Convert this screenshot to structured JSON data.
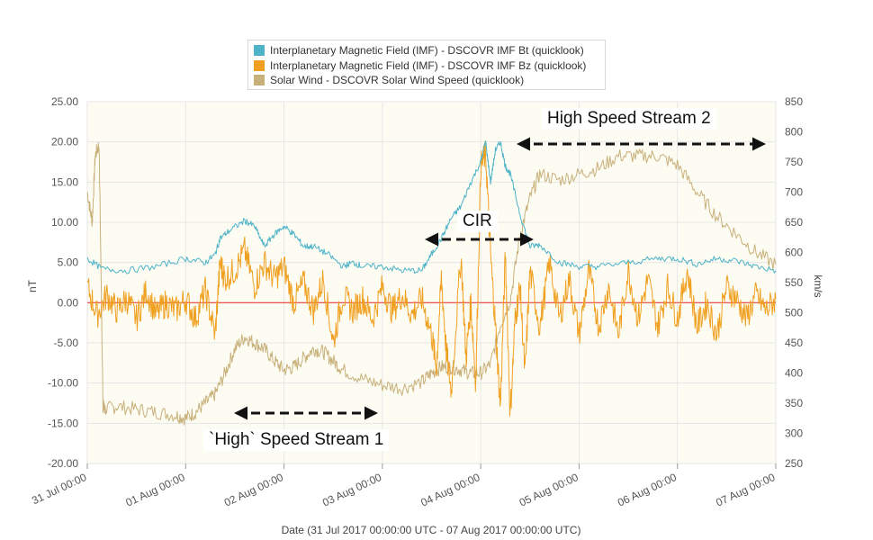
{
  "legend": [
    {
      "label": "Interplanetary Magnetic Field (IMF) - DSCOVR IMF Bt (quicklook)",
      "color": "#4eb3c9"
    },
    {
      "label": "Interplanetary Magnetic Field (IMF) - DSCOVR IMF Bz (quicklook)",
      "color": "#f0a020"
    },
    {
      "label": "Solar Wind - DSCOVR Solar Wind Speed (quicklook)",
      "color": "#c8b07a"
    }
  ],
  "annotations": {
    "hss2": "High Speed Stream 2",
    "cir": "CIR",
    "hss1": "`High` Speed Stream 1"
  },
  "chart_data": {
    "type": "line",
    "xlabel": "Date (31 Jul 2017 00:00:00 UTC - 07 Aug 2017 00:00:00 UTC)",
    "ylabel": "nT",
    "y2label": "km/s",
    "x_range_days": [
      0,
      7
    ],
    "ylim": [
      -20,
      25
    ],
    "y2lim": [
      250,
      850
    ],
    "x_tick_labels": [
      "31 Jul 00:00",
      "01 Aug 00:00",
      "02 Aug 00:00",
      "03 Aug 00:00",
      "04 Aug 00:00",
      "05 Aug 00:00",
      "06 Aug 00:00",
      "07 Aug 00:00"
    ],
    "y_tick_labels": [
      "25.00",
      "20.00",
      "15.00",
      "10.00",
      "5.00",
      "0.00",
      "-5.00",
      "-10.00",
      "-15.00",
      "-20.00"
    ],
    "y2_tick_labels": [
      "850",
      "800",
      "750",
      "700",
      "650",
      "600",
      "550",
      "500",
      "450",
      "400",
      "350",
      "300",
      "250"
    ],
    "reference_line": {
      "y": 0,
      "color": "#e8433a"
    },
    "series": [
      {
        "name": "Interplanetary Magnetic Field (IMF) - DSCOVR IMF Bt (quicklook)",
        "axis": "left",
        "color": "#4eb3c9",
        "x": [
          0,
          0.15,
          0.4,
          0.7,
          1.0,
          1.2,
          1.3,
          1.35,
          1.45,
          1.6,
          1.7,
          1.8,
          1.9,
          2.0,
          2.1,
          2.2,
          2.3,
          2.45,
          2.6,
          2.7,
          2.8,
          3.0,
          3.2,
          3.4,
          3.5,
          3.6,
          3.7,
          3.8,
          3.9,
          4.0,
          4.05,
          4.1,
          4.15,
          4.2,
          4.25,
          4.3,
          4.4,
          4.5,
          4.6,
          4.8,
          5.0,
          5.2,
          5.5,
          5.8,
          6.0,
          6.2,
          6.4,
          6.6,
          6.8,
          7.0
        ],
        "values": [
          5.5,
          4.2,
          4.0,
          4.5,
          5.5,
          5.0,
          6.0,
          8.0,
          9.0,
          10.2,
          9.5,
          7.0,
          8.5,
          9.5,
          8.5,
          7.0,
          7.0,
          6.0,
          4.5,
          5.0,
          4.5,
          4.5,
          4.0,
          4.0,
          6.0,
          8.0,
          10.5,
          12.0,
          15.0,
          17.5,
          20.0,
          15.0,
          19.0,
          20.0,
          17.0,
          16.0,
          11.0,
          7.0,
          7.2,
          5.0,
          4.5,
          4.5,
          5.0,
          5.5,
          5.5,
          4.8,
          5.5,
          5.2,
          4.5,
          4.0
        ]
      },
      {
        "name": "Interplanetary Magnetic Field (IMF) - DSCOVR IMF Bz (quicklook)",
        "axis": "left",
        "color": "#f0a020",
        "x": [
          0,
          0.1,
          0.2,
          0.3,
          0.4,
          0.5,
          0.6,
          0.7,
          0.8,
          0.9,
          1.0,
          1.1,
          1.2,
          1.3,
          1.35,
          1.4,
          1.5,
          1.6,
          1.7,
          1.8,
          1.9,
          2.0,
          2.1,
          2.2,
          2.3,
          2.4,
          2.5,
          2.6,
          2.7,
          2.8,
          2.9,
          3.0,
          3.1,
          3.2,
          3.3,
          3.4,
          3.5,
          3.55,
          3.6,
          3.65,
          3.7,
          3.8,
          3.85,
          3.9,
          3.95,
          4.0,
          4.05,
          4.1,
          4.15,
          4.2,
          4.25,
          4.3,
          4.35,
          4.4,
          4.45,
          4.5,
          4.6,
          4.7,
          4.8,
          4.9,
          5.0,
          5.1,
          5.2,
          5.3,
          5.4,
          5.5,
          5.6,
          5.7,
          5.8,
          5.9,
          6.0,
          6.1,
          6.2,
          6.3,
          6.4,
          6.5,
          6.6,
          6.7,
          6.8,
          6.9,
          7.0
        ],
        "values": [
          2.0,
          -1.5,
          1.0,
          -1.0,
          0.5,
          -2.0,
          1.5,
          -1.5,
          0.0,
          -1.0,
          0.5,
          -2.0,
          1.5,
          -4.0,
          5.0,
          3.0,
          4.0,
          6.5,
          2.0,
          5.0,
          3.0,
          4.5,
          0.0,
          2.5,
          -1.0,
          3.0,
          -5.0,
          1.0,
          -1.0,
          0.5,
          -2.0,
          2.0,
          -1.0,
          1.0,
          -1.5,
          0.5,
          -4.0,
          -8.0,
          3.0,
          -6.0,
          -11.0,
          6.0,
          -7.0,
          0.0,
          -10.0,
          17.0,
          18.5,
          6.0,
          -3.0,
          -13.0,
          6.0,
          -14.0,
          -2.0,
          2.0,
          -9.0,
          4.0,
          -3.0,
          5.0,
          -2.0,
          3.0,
          -4.0,
          4.0,
          -3.0,
          2.0,
          -4.0,
          4.0,
          -2.0,
          3.0,
          -3.0,
          2.0,
          -2.0,
          4.0,
          -3.0,
          0.0,
          -4.0,
          2.0,
          0.5,
          -2.0,
          1.0,
          -1.0,
          0.5
        ]
      },
      {
        "name": "Solar Wind - DSCOVR Solar Wind Speed (quicklook)",
        "axis": "right",
        "color": "#c8b07a",
        "x": [
          0,
          0.05,
          0.08,
          0.12,
          0.16,
          0.18,
          0.3,
          0.5,
          0.7,
          0.9,
          1.0,
          1.1,
          1.2,
          1.3,
          1.4,
          1.5,
          1.6,
          1.7,
          1.8,
          1.9,
          2.0,
          2.1,
          2.2,
          2.3,
          2.4,
          2.5,
          2.6,
          2.8,
          3.0,
          3.2,
          3.4,
          3.5,
          3.6,
          3.7,
          3.8,
          3.9,
          4.0,
          4.1,
          4.2,
          4.3,
          4.4,
          4.5,
          4.6,
          4.8,
          5.0,
          5.2,
          5.4,
          5.6,
          5.8,
          6.0,
          6.2,
          6.4,
          6.6,
          6.8,
          7.0
        ],
        "values": [
          700,
          650,
          760,
          780,
          345,
          340,
          345,
          340,
          335,
          330,
          325,
          335,
          350,
          365,
          400,
          440,
          460,
          450,
          440,
          420,
          405,
          410,
          425,
          440,
          435,
          420,
          405,
          390,
          380,
          375,
          385,
          400,
          410,
          410,
          405,
          400,
          400,
          415,
          480,
          520,
          630,
          690,
          730,
          720,
          730,
          740,
          760,
          760,
          760,
          745,
          700,
          660,
          630,
          600,
          580
        ]
      }
    ]
  }
}
